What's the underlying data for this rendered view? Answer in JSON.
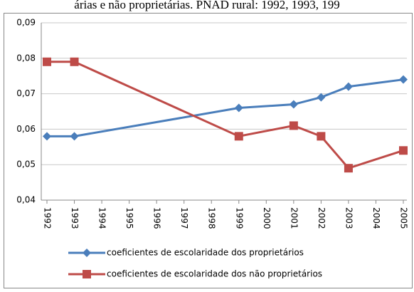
{
  "chart_data": {
    "type": "line",
    "title": "árias e não proprietárias. PNAD rural: 1992, 1993, 199",
    "x": [
      1992,
      1993,
      1999,
      2001,
      2002,
      2003,
      2005
    ],
    "xlim": [
      1992,
      2005
    ],
    "xticks": [
      1992,
      1993,
      1994,
      1995,
      1996,
      1997,
      1998,
      1999,
      2000,
      2001,
      2002,
      2003,
      2004,
      2005
    ],
    "ylim": [
      0.04,
      0.09
    ],
    "yticks": [
      {
        "value": 0.04,
        "label": "0,04"
      },
      {
        "value": 0.05,
        "label": "0,05"
      },
      {
        "value": 0.06,
        "label": "0,06"
      },
      {
        "value": 0.07,
        "label": "0,07"
      },
      {
        "value": 0.08,
        "label": "0,08"
      },
      {
        "value": 0.09,
        "label": "0,09"
      }
    ],
    "grid": true,
    "series": [
      {
        "name": "coeficientes de escolaridade dos proprietários",
        "color": "#4a7ebb",
        "marker": "diamond",
        "values": [
          0.058,
          0.058,
          0.066,
          0.067,
          0.069,
          0.072,
          0.074
        ]
      },
      {
        "name": "coeficientes de escolaridade dos não proprietários",
        "color": "#be4b48",
        "marker": "square",
        "values": [
          0.079,
          0.079,
          0.058,
          0.061,
          0.058,
          0.049,
          0.054
        ]
      }
    ]
  }
}
